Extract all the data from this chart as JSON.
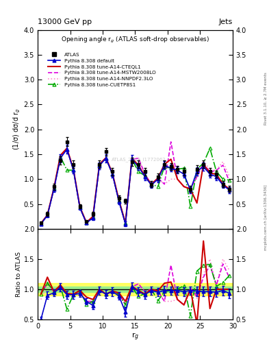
{
  "title_top": "13000 GeV pp",
  "title_right": "Jets",
  "plot_title": "Opening angle r$_g$ (ATLAS soft-drop observables)",
  "xlabel": "r$_g$",
  "ylabel_main": "(1/σ) dσ/d r$_g$",
  "ylabel_ratio": "Ratio to ATLAS",
  "right_label_top": "Rivet 3.1.10, ≥ 2.7M events",
  "right_label_bottom": "mcplots.cern.ch [arXiv:1306.3436]",
  "watermark": "ATLAS_2019_I1772062",
  "xlim": [
    0,
    30
  ],
  "ylim_main": [
    0,
    4
  ],
  "ylim_ratio": [
    0.5,
    2.0
  ],
  "x_ticks": [
    0,
    5,
    10,
    15,
    20,
    25,
    30
  ],
  "y_ticks_main": [
    0,
    0.5,
    1.0,
    1.5,
    2.0,
    2.5,
    3.0,
    3.5,
    4.0
  ],
  "y_ticks_ratio": [
    0.5,
    1.0,
    1.5,
    2.0
  ],
  "atlas_x": [
    0.5,
    1.5,
    2.5,
    3.5,
    4.5,
    5.5,
    6.5,
    7.5,
    8.5,
    9.5,
    10.5,
    11.5,
    12.5,
    13.5,
    14.5,
    15.5,
    16.5,
    17.5,
    18.5,
    19.5,
    20.5,
    21.5,
    22.5,
    23.5,
    24.5,
    25.5,
    26.5,
    27.5,
    28.5,
    29.5
  ],
  "atlas_y": [
    0.12,
    0.3,
    0.85,
    1.38,
    1.75,
    1.3,
    0.45,
    0.15,
    0.3,
    1.3,
    1.55,
    1.15,
    0.62,
    0.56,
    1.35,
    1.3,
    1.15,
    0.9,
    1.05,
    1.3,
    1.25,
    1.2,
    1.15,
    0.8,
    1.2,
    1.3,
    1.15,
    1.1,
    0.9,
    0.8
  ],
  "atlas_yerr": [
    0.02,
    0.04,
    0.06,
    0.08,
    0.09,
    0.07,
    0.04,
    0.02,
    0.04,
    0.07,
    0.08,
    0.07,
    0.05,
    0.05,
    0.08,
    0.07,
    0.07,
    0.06,
    0.06,
    0.08,
    0.07,
    0.07,
    0.07,
    0.06,
    0.08,
    0.08,
    0.07,
    0.07,
    0.06,
    0.06
  ],
  "default_x": [
    0.5,
    1.5,
    2.5,
    3.5,
    4.5,
    5.5,
    6.5,
    7.5,
    8.5,
    9.5,
    10.5,
    11.5,
    12.5,
    13.5,
    14.5,
    15.5,
    16.5,
    17.5,
    18.5,
    19.5,
    20.5,
    21.5,
    22.5,
    23.5,
    24.5,
    25.5,
    26.5,
    27.5,
    28.5,
    29.5
  ],
  "default_y": [
    0.1,
    0.27,
    0.8,
    1.42,
    1.6,
    1.18,
    0.42,
    0.12,
    0.22,
    1.27,
    1.42,
    1.1,
    0.55,
    0.1,
    1.4,
    1.25,
    1.05,
    0.88,
    1.0,
    1.28,
    1.22,
    1.18,
    1.1,
    0.78,
    1.16,
    1.25,
    1.1,
    1.05,
    0.88,
    0.78
  ],
  "default_yerr": [
    0.02,
    0.04,
    0.06,
    0.08,
    0.09,
    0.07,
    0.04,
    0.02,
    0.04,
    0.07,
    0.08,
    0.07,
    0.05,
    0.05,
    0.08,
    0.07,
    0.07,
    0.06,
    0.06,
    0.08,
    0.07,
    0.07,
    0.07,
    0.06,
    0.08,
    0.08,
    0.07,
    0.07,
    0.06,
    0.06
  ],
  "cteql1_x": [
    0.5,
    1.5,
    2.5,
    3.5,
    4.5,
    5.5,
    6.5,
    7.5,
    8.5,
    9.5,
    10.5,
    11.5,
    12.5,
    13.5,
    14.5,
    15.5,
    16.5,
    17.5,
    18.5,
    19.5,
    20.5,
    21.5,
    22.5,
    23.5,
    24.5,
    25.5,
    26.5,
    27.5,
    28.5,
    29.5
  ],
  "cteql1_y": [
    0.11,
    0.28,
    0.82,
    1.48,
    1.62,
    1.2,
    0.44,
    0.13,
    0.25,
    1.3,
    1.43,
    1.12,
    0.58,
    0.12,
    1.42,
    1.28,
    1.06,
    0.9,
    1.02,
    1.3,
    1.4,
    1.0,
    0.85,
    0.8,
    0.52,
    1.3,
    1.12,
    1.1,
    0.9,
    0.8
  ],
  "mstw_x": [
    0.5,
    1.5,
    2.5,
    3.5,
    4.5,
    5.5,
    6.5,
    7.5,
    8.5,
    9.5,
    10.5,
    11.5,
    12.5,
    13.5,
    14.5,
    15.5,
    16.5,
    17.5,
    18.5,
    19.5,
    20.5,
    21.5,
    22.5,
    23.5,
    24.5,
    25.5,
    26.5,
    27.5,
    28.5,
    29.5
  ],
  "mstw_y": [
    0.11,
    0.28,
    0.82,
    1.44,
    1.61,
    1.19,
    0.43,
    0.12,
    0.24,
    1.28,
    1.42,
    1.1,
    0.57,
    0.11,
    1.4,
    1.42,
    1.1,
    0.9,
    1.02,
    0.9,
    1.75,
    1.0,
    0.85,
    0.82,
    1.05,
    1.32,
    1.14,
    1.18,
    1.28,
    0.95
  ],
  "nnpdf_x": [
    0.5,
    1.5,
    2.5,
    3.5,
    4.5,
    5.5,
    6.5,
    7.5,
    8.5,
    9.5,
    10.5,
    11.5,
    12.5,
    13.5,
    14.5,
    15.5,
    16.5,
    17.5,
    18.5,
    19.5,
    20.5,
    21.5,
    22.5,
    23.5,
    24.5,
    25.5,
    26.5,
    27.5,
    28.5,
    29.5
  ],
  "nnpdf_y": [
    0.1,
    0.28,
    0.81,
    1.43,
    1.6,
    1.18,
    0.42,
    0.12,
    0.23,
    1.28,
    1.41,
    1.1,
    0.57,
    0.11,
    1.39,
    1.42,
    1.1,
    0.89,
    1.01,
    0.9,
    1.0,
    1.0,
    0.85,
    0.82,
    1.02,
    1.38,
    1.18,
    1.18,
    1.35,
    1.05
  ],
  "cuetp_x": [
    0.5,
    1.5,
    2.5,
    3.5,
    4.5,
    5.5,
    6.5,
    7.5,
    8.5,
    9.5,
    10.5,
    11.5,
    12.5,
    13.5,
    14.5,
    15.5,
    16.5,
    17.5,
    18.5,
    19.5,
    20.5,
    21.5,
    22.5,
    23.5,
    24.5,
    25.5,
    26.5,
    27.5,
    28.5,
    29.5
  ],
  "cuetp_y": [
    0.11,
    0.28,
    0.82,
    1.45,
    1.18,
    1.18,
    0.44,
    0.12,
    0.24,
    1.29,
    1.42,
    1.1,
    0.57,
    0.12,
    1.4,
    1.15,
    1.07,
    0.9,
    0.85,
    1.25,
    1.22,
    1.2,
    1.22,
    0.45,
    1.2,
    1.32,
    1.62,
    1.15,
    1.0,
    0.98
  ],
  "band_yellow_lo": 0.9,
  "band_yellow_hi": 1.1,
  "band_green_lo": 0.95,
  "band_green_hi": 1.05,
  "default_ratio": [
    0.5,
    0.9,
    0.94,
    1.03,
    0.91,
    0.91,
    0.93,
    0.8,
    0.73,
    0.98,
    0.92,
    0.96,
    0.89,
    0.62,
    1.04,
    0.96,
    0.91,
    0.98,
    0.95,
    0.98,
    0.98,
    0.98,
    0.96,
    0.98,
    0.97,
    0.96,
    0.96,
    0.95,
    0.98,
    0.93
  ],
  "default_ratio_err": [
    0.04,
    0.06,
    0.06,
    0.07,
    0.07,
    0.07,
    0.06,
    0.05,
    0.06,
    0.07,
    0.07,
    0.07,
    0.06,
    0.08,
    0.07,
    0.07,
    0.07,
    0.07,
    0.07,
    0.08,
    0.07,
    0.07,
    0.07,
    0.07,
    0.08,
    0.08,
    0.08,
    0.08,
    0.08,
    0.08
  ],
  "cteql1_ratio": [
    0.92,
    1.2,
    0.96,
    1.07,
    0.93,
    0.92,
    0.98,
    0.87,
    0.83,
    1.0,
    0.92,
    0.97,
    0.94,
    0.8,
    1.05,
    0.98,
    0.92,
    1.0,
    0.97,
    1.1,
    1.12,
    0.83,
    0.74,
    1.0,
    0.43,
    1.8,
    0.68,
    1.0,
    1.0,
    1.0
  ],
  "mstw_ratio": [
    0.92,
    1.1,
    0.97,
    1.04,
    0.92,
    0.92,
    0.96,
    0.8,
    0.8,
    0.98,
    0.92,
    0.96,
    0.92,
    0.75,
    1.04,
    1.09,
    0.96,
    1.0,
    0.97,
    0.8,
    1.4,
    0.83,
    0.74,
    1.02,
    0.88,
    1.2,
    1.4,
    1.07,
    1.42,
    1.19
  ],
  "nnpdf_ratio": [
    0.83,
    1.08,
    0.95,
    1.04,
    0.91,
    0.91,
    0.93,
    0.8,
    0.77,
    0.98,
    0.91,
    0.96,
    0.92,
    0.75,
    1.03,
    1.09,
    0.96,
    0.99,
    0.96,
    0.8,
    0.8,
    0.83,
    0.74,
    1.02,
    0.85,
    1.25,
    1.5,
    1.07,
    1.5,
    1.31
  ],
  "cuetp_ratio": [
    0.92,
    1.1,
    0.97,
    1.05,
    0.67,
    0.91,
    0.98,
    0.75,
    0.8,
    0.99,
    0.92,
    0.96,
    0.92,
    0.74,
    1.04,
    0.88,
    0.93,
    1.0,
    0.81,
    0.96,
    0.98,
    1.0,
    1.06,
    0.56,
    1.3,
    1.4,
    1.41,
    1.05,
    1.11,
    1.23
  ],
  "color_atlas": "#000000",
  "color_default": "#0000cc",
  "color_cteql1": "#cc0000",
  "color_mstw": "#dd00dd",
  "color_nnpdf": "#ff88cc",
  "color_cuetp": "#00aa00",
  "bg_color": "#ffffff",
  "watermark_color": "#cccccc"
}
